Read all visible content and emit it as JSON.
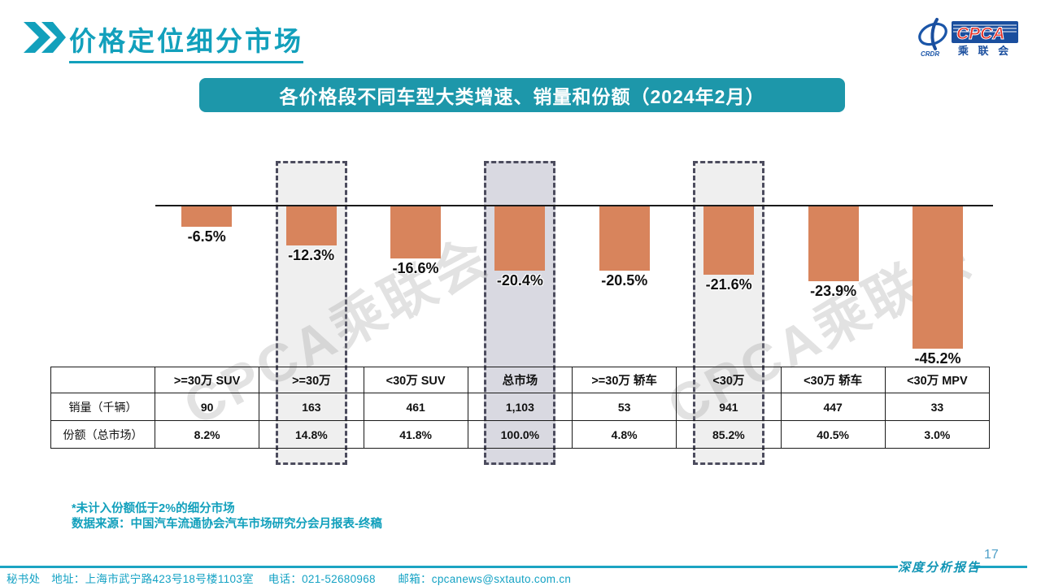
{
  "page": {
    "title": "价格定位细分市场",
    "page_number": "17"
  },
  "logo": {
    "cpca": "CPCA",
    "crdr": "CRDR",
    "cn_name": "乘 联 会"
  },
  "banner": {
    "title": "各价格段不同车型大类增速、销量和份额（2024年2月）"
  },
  "watermark": {
    "text": "CPCA乘联会"
  },
  "chart_data": {
    "type": "bar",
    "title": "各价格段不同车型大类增速、销量和份额（2024年2月）",
    "categories": [
      ">=30万 SUV",
      ">=30万",
      "<30万 SUV",
      "总市场",
      ">=30万 轿车",
      "<30万",
      "<30万 轿车",
      "<30万 MPV"
    ],
    "series": [
      {
        "name": "增速",
        "values": [
          -6.5,
          -12.3,
          -16.6,
          -20.4,
          -20.5,
          -21.6,
          -23.9,
          -45.2
        ]
      }
    ],
    "labels": [
      "-6.5%",
      "-12.3%",
      "-16.6%",
      "-20.4%",
      "-20.5%",
      "-21.6%",
      "-23.9%",
      "-45.2%"
    ],
    "bar_color": "#D8845C",
    "baseline": 0,
    "ylim": [
      -50,
      10
    ],
    "grid": false,
    "legend": "none",
    "highlight_boxes": [
      {
        "column_index": 1,
        "fill": "#EFEFEF"
      },
      {
        "column_index": 3,
        "fill": "#D9D9E1"
      },
      {
        "column_index": 5,
        "fill": "#EFEFEF"
      }
    ],
    "table": {
      "row_headers": [
        "销量（千辆）",
        "份额（总市场）"
      ],
      "sales": [
        "90",
        "163",
        "461",
        "1,103",
        "53",
        "941",
        "447",
        "33"
      ],
      "share": [
        "8.2%",
        "14.8%",
        "41.8%",
        "100.0%",
        "4.8%",
        "85.2%",
        "40.5%",
        "3.0%"
      ]
    }
  },
  "footnotes": {
    "line1": "*未计入份额低于2%的细分市场",
    "line2": "数据来源：中国汽车流通协会汽车市场研究分会月报表-终稿"
  },
  "footer": {
    "contact": "秘书处　地址：上海市武宁路423号18号楼1103室　 电话：021-52680968　　邮箱：cpcanews@sxtauto.com.cn",
    "report_label": "深度分析报告"
  },
  "colors": {
    "accent_teal": "#1D97AA",
    "title_teal": "#12A0BC",
    "bar_salmon": "#D8845C",
    "dashed_border": "#4C4C5E",
    "box_light": "#EFEFEF",
    "box_dark": "#D9D9E1"
  }
}
